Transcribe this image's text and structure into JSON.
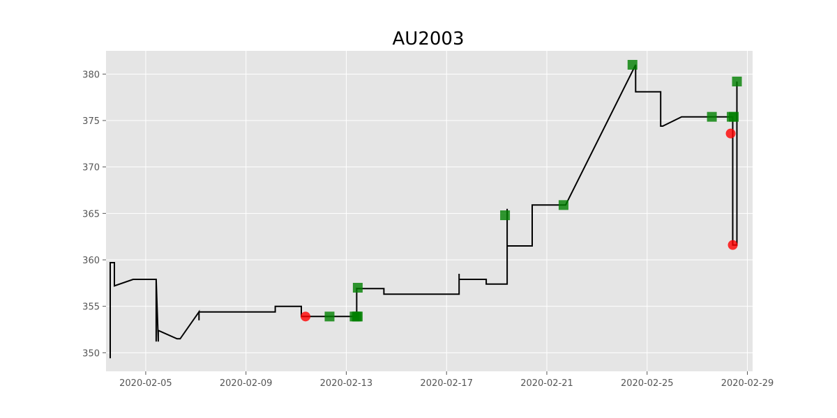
{
  "chart_data": {
    "type": "line",
    "title": "AU2003",
    "xlabel": "",
    "ylabel": "",
    "grid": true,
    "x_range": [
      "2020-02-03T10:00",
      "2020-02-29T05:00"
    ],
    "ylim": [
      348,
      382.5
    ],
    "x_ticks": [
      "2020-02-05",
      "2020-02-09",
      "2020-02-13",
      "2020-02-17",
      "2020-02-21",
      "2020-02-25",
      "2020-02-29"
    ],
    "y_ticks": [
      350,
      355,
      360,
      365,
      370,
      375,
      380
    ],
    "colors": {
      "plot_background": "#e5e5e5",
      "grid": "#ffffff",
      "price_line": "#000000",
      "buy_marker": "#008000",
      "sell_marker": "#ff0000"
    },
    "series": [
      {
        "marker": "line",
        "x": [
          "2020-02-03T14:00",
          "2020-02-03T14:00",
          "2020-02-03T14:00",
          "2020-02-03T14:00",
          "2020-02-03T14:00",
          "2020-02-03T14:00",
          "2020-02-03T14:00",
          "2020-02-03T14:00",
          "2020-02-03T14:00",
          "2020-02-03T14:00",
          "2020-02-03T18:00",
          "2020-02-03T18:00",
          "2020-02-04T12:00",
          "2020-02-04T12:00",
          "2020-02-04T12:00",
          "2020-02-05T10:00",
          "2020-02-05T10:00",
          "2020-02-05T10:00",
          "2020-02-05T12:00",
          "2020-02-05T12:00",
          "2020-02-06T06:00",
          "2020-02-06T09:00",
          "2020-02-07T03:00",
          "2020-02-07T03:00",
          "2020-02-07T03:00",
          "2020-02-07T03:00",
          "2020-02-07T03:00",
          "2020-02-07T04:00",
          "2020-02-10T04:00",
          "2020-02-10T04:00",
          "2020-02-11T05:00",
          "2020-02-11T05:00",
          "2020-02-13T09:00",
          "2020-02-13T10:00",
          "2020-02-13T10:00",
          "2020-02-13T10:00",
          "2020-02-13T10:00",
          "2020-02-13T10:00",
          "2020-02-14T12:00",
          "2020-02-14T12:00",
          "2020-02-17T12:00",
          "2020-02-17T12:00",
          "2020-02-17T12:00",
          "2020-02-17T12:00",
          "2020-02-17T12:00",
          "2020-02-17T12:00",
          "2020-02-17T14:00",
          "2020-02-17T14:00",
          "2020-02-17T14:00",
          "2020-02-18T14:00",
          "2020-02-18T14:00",
          "2020-02-19T10:00",
          "2020-02-19T10:00",
          "2020-02-19T10:00",
          "2020-02-19T10:00",
          "2020-02-19T10:00",
          "2020-02-19T10:00",
          "2020-02-19T10:00",
          "2020-02-19T10:00",
          "2020-02-19T10:00",
          "2020-02-19T10:00",
          "2020-02-19T10:00",
          "2020-02-19T10:00",
          "2020-02-19T10:00",
          "2020-02-20T10:00",
          "2020-02-20T10:00",
          "2020-02-21T18:00",
          "2020-02-24T13:00",
          "2020-02-24T13:00",
          "2020-02-25T13:00",
          "2020-02-25T13:00",
          "2020-02-25T13:00",
          "2020-02-25T13:00",
          "2020-02-25T15:00",
          "2020-02-25T15:00",
          "2020-02-26T09:00",
          "2020-02-28T10:00",
          "2020-02-28T10:00",
          "2020-02-28T14:00",
          "2020-02-28T14:00",
          "2020-02-28T14:00",
          "2020-02-28T14:00"
        ],
        "values": [
          349.4,
          359.7,
          349.4,
          359.7,
          349.4,
          359.7,
          349.4,
          359.7,
          349.4,
          359.7,
          359.7,
          357.2,
          357.9,
          357.9,
          357.9,
          357.9,
          351.2,
          357.9,
          351.2,
          352.4,
          351.5,
          351.5,
          354.4,
          353.5,
          354.4,
          353.5,
          354.4,
          354.4,
          354.4,
          355.0,
          355.0,
          353.9,
          353.9,
          353.9,
          357.0,
          353.9,
          357.0,
          356.9,
          356.9,
          356.3,
          356.3,
          358.5,
          356.3,
          358.5,
          356.3,
          357.9,
          357.9,
          357.9,
          357.9,
          357.9,
          357.4,
          357.4,
          365.5,
          362.0,
          365.5,
          362.0,
          365.5,
          362.0,
          365.5,
          362.0,
          365.5,
          362.0,
          365.5,
          361.5,
          361.5,
          365.9,
          365.9,
          381.0,
          378.1,
          378.1,
          376.6,
          376.6,
          374.4,
          374.4,
          374.4,
          375.4,
          375.4,
          361.6,
          361.6,
          379.2,
          361.6,
          379.2
        ]
      },
      {
        "marker": "buy",
        "x": [
          "2020-02-12T08:00",
          "2020-02-13T08:00",
          "2020-02-13T10:00",
          "2020-02-13T11:00",
          "2020-02-13T11:00",
          "2020-02-19T08:00",
          "2020-02-21T16:00",
          "2020-02-24T10:00",
          "2020-02-27T14:00",
          "2020-02-28T09:00",
          "2020-02-28T11:00",
          "2020-02-28T14:00"
        ],
        "values": [
          353.9,
          353.9,
          353.9,
          353.9,
          357.0,
          364.8,
          365.9,
          381.0,
          375.4,
          375.4,
          375.4,
          379.2
        ]
      },
      {
        "marker": "sell",
        "x": [
          "2020-02-11T09:00",
          "2020-02-28T08:00",
          "2020-02-28T10:00"
        ],
        "values": [
          353.9,
          373.6,
          361.6
        ]
      }
    ]
  }
}
